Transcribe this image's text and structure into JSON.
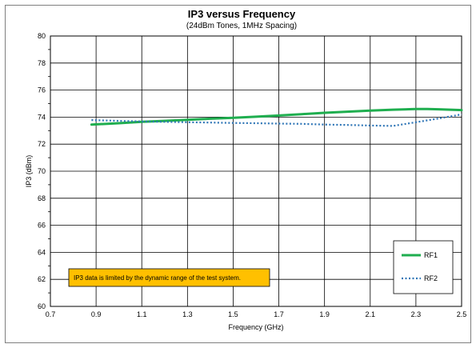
{
  "chart_data": {
    "type": "line",
    "title": "IP3 versus Frequency",
    "subtitle": "(24dBm Tones, 1MHz Spacing)",
    "xlabel": "Frequency (GHz)",
    "ylabel": "IP3 (dBm)",
    "xlim": [
      0.7,
      2.5
    ],
    "ylim": [
      60,
      80
    ],
    "xticks": [
      "0.7",
      "0.9",
      "1.1",
      "1.3",
      "1.5",
      "1.7",
      "1.9",
      "2.1",
      "2.3",
      "2.5"
    ],
    "yticks": [
      "60",
      "62",
      "64",
      "66",
      "68",
      "70",
      "72",
      "74",
      "76",
      "78",
      "80"
    ],
    "grid": true,
    "legend_position": "bottom-right",
    "series": [
      {
        "name": "RF1",
        "color": "#1fae4f",
        "style": "solid",
        "x": [
          0.88,
          1.0,
          1.1,
          1.2,
          1.3,
          1.4,
          1.5,
          1.6,
          1.7,
          1.8,
          1.9,
          2.0,
          2.1,
          2.2,
          2.3,
          2.35,
          2.4,
          2.5
        ],
        "y": [
          73.45,
          73.55,
          73.65,
          73.72,
          73.8,
          73.88,
          73.95,
          74.03,
          74.12,
          74.22,
          74.32,
          74.4,
          74.48,
          74.55,
          74.6,
          74.6,
          74.58,
          74.52
        ]
      },
      {
        "name": "RF2",
        "color": "#2e75b6",
        "style": "dotted",
        "x": [
          0.88,
          1.0,
          1.1,
          1.2,
          1.3,
          1.4,
          1.5,
          1.6,
          1.7,
          1.8,
          1.9,
          2.0,
          2.1,
          2.2,
          2.3,
          2.4,
          2.5
        ],
        "y": [
          73.78,
          73.72,
          73.68,
          73.65,
          73.62,
          73.6,
          73.57,
          73.55,
          73.52,
          73.5,
          73.45,
          73.42,
          73.38,
          73.35,
          73.62,
          73.9,
          74.2
        ]
      }
    ],
    "annotation": {
      "text": "IP3 data is limited by the dynamic range of the test system.",
      "background": "#ffc000"
    }
  }
}
